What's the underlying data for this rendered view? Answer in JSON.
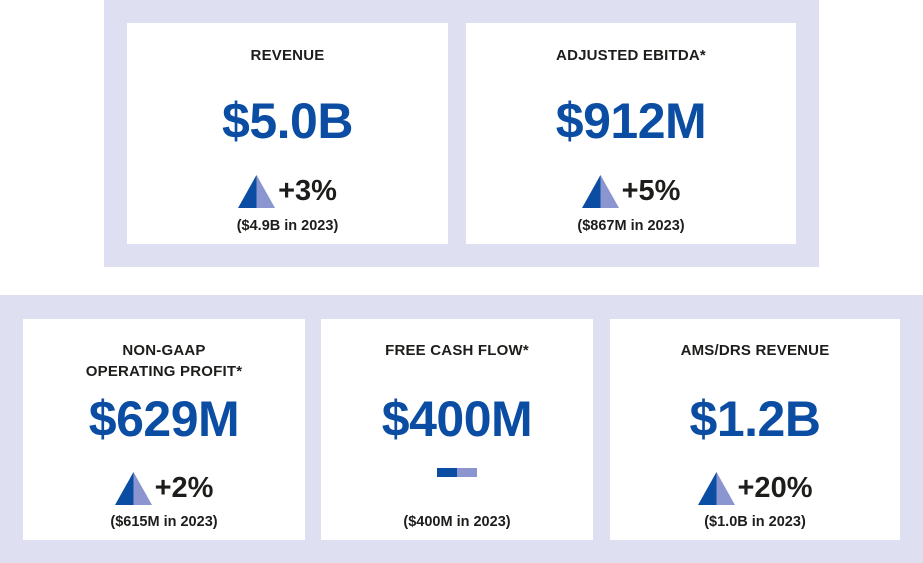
{
  "accent_color": "#0a4da3",
  "band_color": "#dedff0",
  "metrics": [
    {
      "label": "REVENUE",
      "value": "$5.0B",
      "change": "+3%",
      "change_icon": "up-triangle-icon",
      "prior": "($4.9B in 2023)"
    },
    {
      "label": "ADJUSTED EBITDA*",
      "value": "$912M",
      "change": "+5%",
      "change_icon": "up-triangle-icon",
      "prior": "($867M in 2023)"
    },
    {
      "label_lines": [
        "NON-GAAP",
        "OPERATING PROFIT*"
      ],
      "value": "$629M",
      "change": "+2%",
      "change_icon": "up-triangle-icon",
      "prior": "($615M in 2023)"
    },
    {
      "label": "FREE CASH FLOW*",
      "value": "$400M",
      "change": "",
      "change_icon": "flat-dash-icon",
      "prior": "($400M in 2023)"
    },
    {
      "label": "AMS/DRS REVENUE",
      "value": "$1.2B",
      "change": "+20%",
      "change_icon": "up-triangle-icon",
      "prior": "($1.0B in 2023)"
    }
  ]
}
